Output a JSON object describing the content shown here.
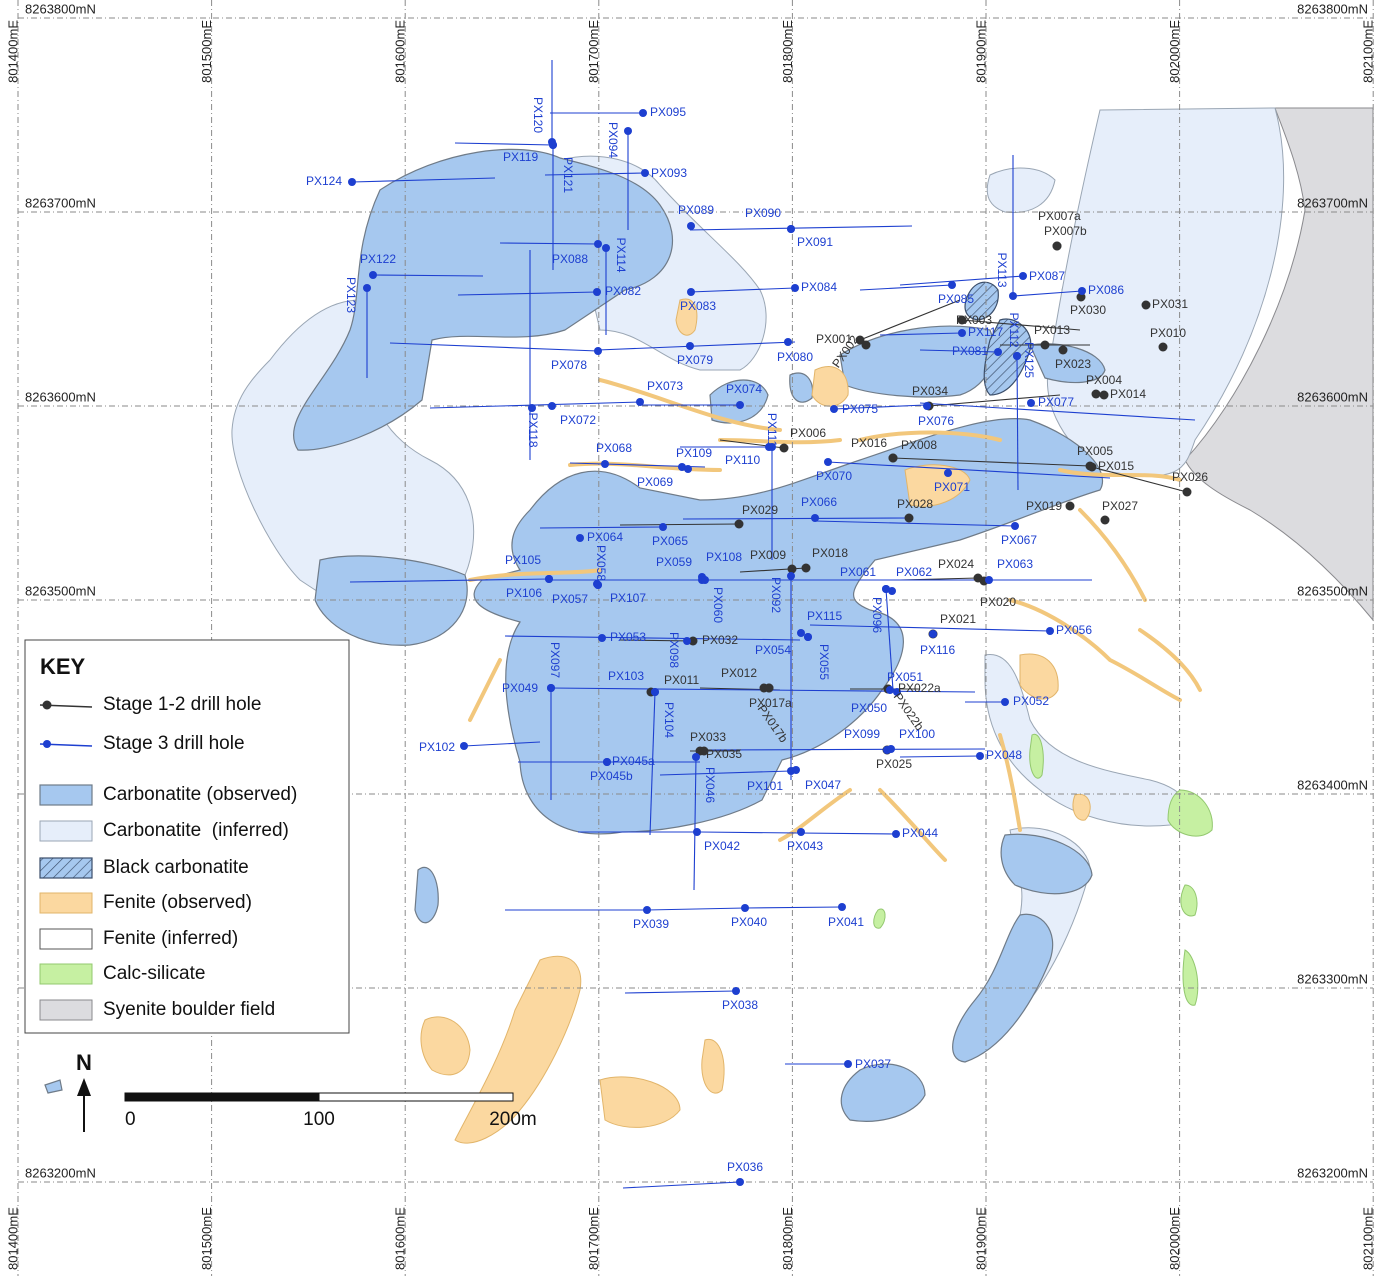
{
  "grid": {
    "eastings": [
      {
        "value": 801400,
        "label": "801400mE"
      },
      {
        "value": 801500,
        "label": "801500mE"
      },
      {
        "value": 801600,
        "label": "801600mE"
      },
      {
        "value": 801700,
        "label": "801700mE"
      },
      {
        "value": 801800,
        "label": "801800mE"
      },
      {
        "value": 801900,
        "label": "801900mE"
      },
      {
        "value": 802000,
        "label": "802000mE"
      },
      {
        "value": 802100,
        "label": "802100mE"
      }
    ],
    "northings": [
      {
        "value": 8263800,
        "label": "8263800mN"
      },
      {
        "value": 8263700,
        "label": "8263700mN"
      },
      {
        "value": 8263600,
        "label": "8263600mN"
      },
      {
        "value": 8263500,
        "label": "8263500mN"
      },
      {
        "value": 8263400,
        "label": "8263400mN"
      },
      {
        "value": 8263300,
        "label": "8263300mN"
      },
      {
        "value": 8263200,
        "label": "8263200mN"
      }
    ]
  },
  "legend": {
    "title": "KEY",
    "items": [
      "Stage 1-2 drill hole",
      "Stage 3 drill hole",
      "Carbonatite (observed)",
      "Carbonatite  (inferred)",
      "Black carbonatite",
      "Fenite (observed)",
      "Fenite (inferred)",
      "Calc-silicate",
      "Syenite boulder field"
    ]
  },
  "north_arrow": "N",
  "scale_bar": {
    "ticks": [
      0,
      100,
      {
        "value": 200,
        "label": "200m"
      }
    ]
  },
  "stage_1_2_holes": [
    "PX007a",
    "PX007b",
    "PX030",
    "PX031",
    "PX003",
    "PX001",
    "PX002",
    "PX013",
    "PX010",
    "PX023",
    "PX004",
    "PX014",
    "PX034",
    "PX006",
    "PX016",
    "PX008",
    "PX005",
    "PX015",
    "PX026",
    "PX019",
    "PX027",
    "PX028",
    "PX029",
    "PX009",
    "PX018",
    "PX024",
    "PX020",
    "PX021",
    "PX032",
    "PX011",
    "PX012",
    "PX017a",
    "PX017b",
    "PX022a",
    "PX022b",
    "PX033",
    "PX035",
    "PX025"
  ],
  "stage_3_holes": [
    "PX095",
    "PX094",
    "PX120",
    "PX119",
    "PX121",
    "PX093",
    "PX124",
    "PX089",
    "PX090",
    "PX091",
    "PX088",
    "PX114",
    "PX122",
    "PX123",
    "PX082",
    "PX084",
    "PX083",
    "PX078",
    "PX079",
    "PX080",
    "PX073",
    "PX074",
    "PX118",
    "PX072",
    "PX111",
    "PX075",
    "PX076",
    "PX077",
    "PX068",
    "PX109",
    "PX110",
    "PX069",
    "PX070",
    "PX071",
    "PX066",
    "PX064",
    "PX065",
    "PX067",
    "PX058",
    "PX059",
    "PX108",
    "PX105",
    "PX106",
    "PX057",
    "PX107",
    "PX060",
    "PX092",
    "PX061",
    "PX062",
    "PX063",
    "PX096",
    "PX115",
    "PX056",
    "PX053",
    "PX098",
    "PX054",
    "PX055",
    "PX116",
    "PX097",
    "PX049",
    "PX103",
    "PX104",
    "PX051",
    "PX050",
    "PX052",
    "PX099",
    "PX100",
    "PX102",
    "PX045a",
    "PX045b",
    "PX046",
    "PX048",
    "PX101",
    "PX047",
    "PX042",
    "PX043",
    "PX044",
    "PX039",
    "PX040",
    "PX041",
    "PX038",
    "PX037",
    "PX036",
    "PX085",
    "PX087",
    "PX086",
    "PX113",
    "PX117",
    "PX081",
    "PX112",
    "PX125"
  ]
}
